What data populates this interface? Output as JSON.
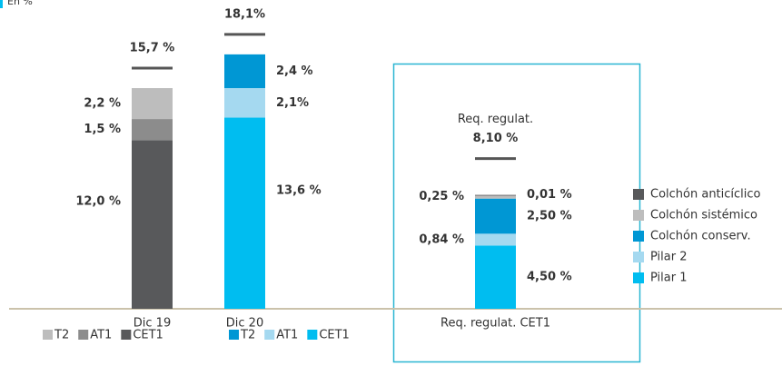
{
  "chart_data": {
    "type": "stacked-bar",
    "subtitle": "En %",
    "ylim": [
      0,
      21
    ],
    "bars": [
      {
        "category": "Dic 19",
        "total": 15.7,
        "total_label": "15,7 %",
        "legend": "below",
        "segments": [
          {
            "name": "CET1",
            "color": "#58595b",
            "value": 12.0,
            "value_label": "12,0 %"
          },
          {
            "name": "AT1",
            "color": "#8c8c8c",
            "value": 1.5,
            "value_label": "1,5 %"
          },
          {
            "name": "T2",
            "color": "#bdbdbd",
            "value": 2.2,
            "value_label": "2,2 %"
          }
        ]
      },
      {
        "category": "Dic 20",
        "total": 18.1,
        "total_label": "18,1%",
        "legend": "below",
        "segments": [
          {
            "name": "CET1",
            "color": "#00bdf0",
            "value": 13.6,
            "value_label": "13,6 %"
          },
          {
            "name": "AT1",
            "color": "#a5d9f0",
            "value": 2.1,
            "value_label": "2,1%"
          },
          {
            "name": "T2",
            "color": "#0097d4",
            "value": 2.4,
            "value_label": "2,4 %"
          }
        ]
      },
      {
        "category": "Req. regulat. CET1",
        "total_title": "Req. regulat.",
        "total": 8.1,
        "total_label": "8,10 %",
        "legend": "right",
        "segments": [
          {
            "name": "Pilar 1",
            "color": "#00bdf0",
            "value": 4.5,
            "value_label": "4,50 %"
          },
          {
            "name": "Pilar 2",
            "color": "#a5d9f0",
            "value": 0.84,
            "value_label": "0,84 %"
          },
          {
            "name": "Colchón conserv.",
            "color": "#0097d4",
            "value": 2.5,
            "value_label": "2,50 %"
          },
          {
            "name": "Colchón sistémico",
            "color": "#bdbdbd",
            "value": 0.25,
            "value_label": "0,25 %"
          },
          {
            "name": "Colchón anticíclico",
            "color": "#58595b",
            "value": 0.01,
            "value_label": "0,01 %"
          }
        ]
      }
    ]
  }
}
